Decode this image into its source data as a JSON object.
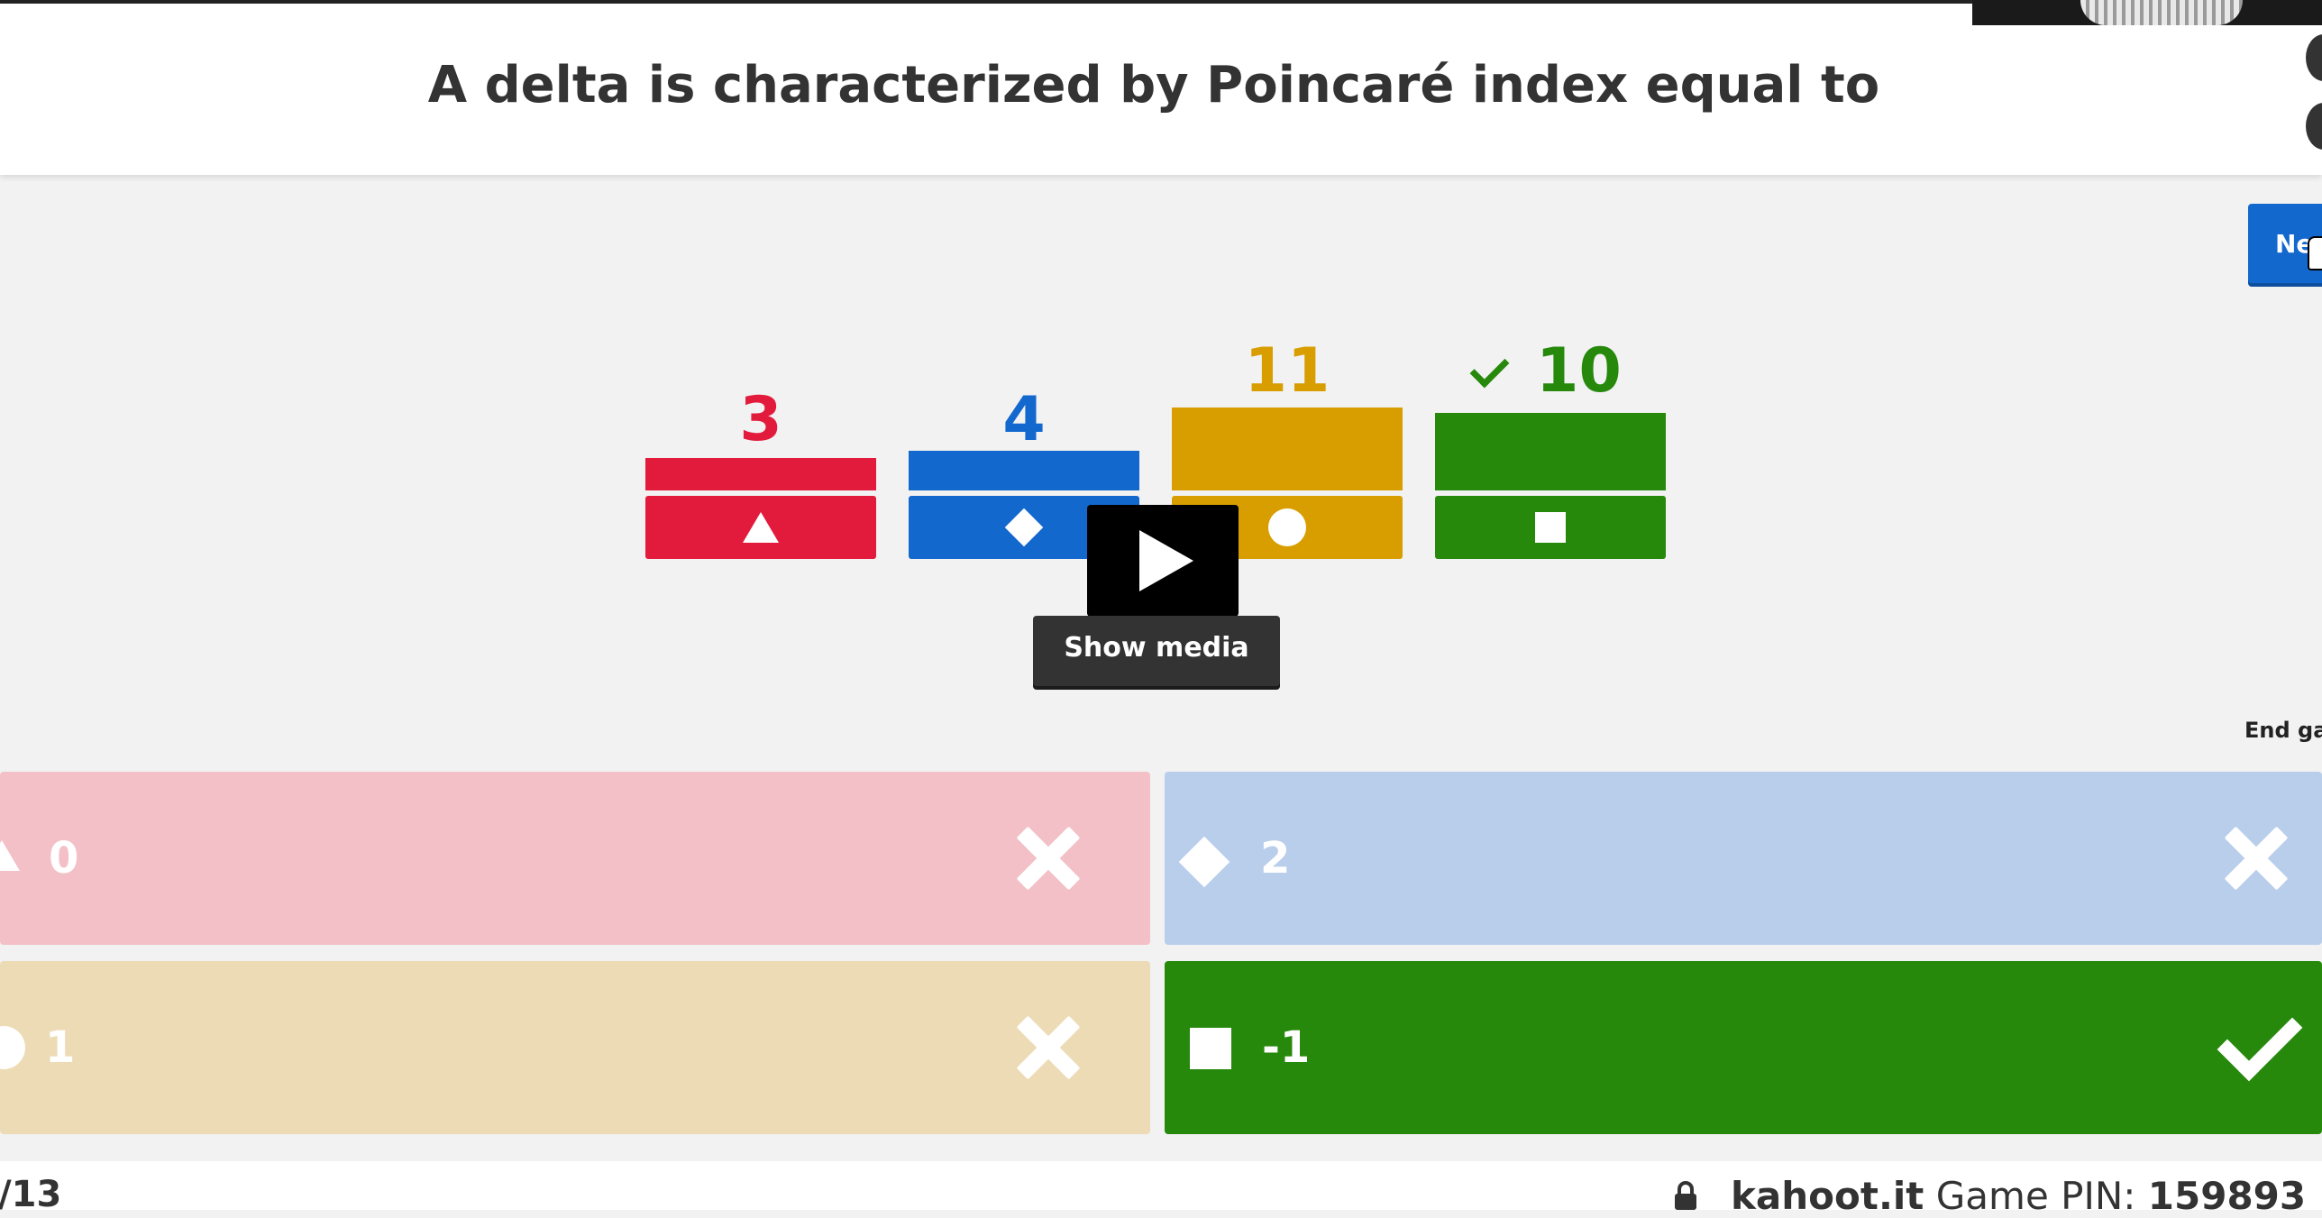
{
  "header": {
    "question": "A delta is characterized by Poincaré index equal to"
  },
  "controls": {
    "next_label": "Next",
    "end_game_label": "End game"
  },
  "media": {
    "show_media_label": "Show media"
  },
  "results": [
    {
      "count": "3",
      "shape": "triangle-icon",
      "color": "#e21b3c",
      "correct": false
    },
    {
      "count": "4",
      "shape": "diamond-icon",
      "color": "#1368ce",
      "correct": false
    },
    {
      "count": "11",
      "shape": "circle-icon",
      "color": "#d89e00",
      "correct": false
    },
    {
      "count": "10",
      "shape": "square-icon",
      "color": "#26890c",
      "correct": true
    }
  ],
  "answers": [
    {
      "text": "0",
      "shape": "triangle-icon",
      "status": "incorrect",
      "color": "#f2c0c6"
    },
    {
      "text": "2",
      "shape": "diamond-icon",
      "status": "incorrect",
      "color": "#b9ceeb"
    },
    {
      "text": "1",
      "shape": "circle-icon",
      "status": "incorrect",
      "color": "#eddbb6"
    },
    {
      "text": "-1",
      "shape": "square-icon",
      "status": "correct",
      "color": "#26890c"
    }
  ],
  "footer": {
    "question_count": "/13",
    "brand": "kahoot.it",
    "pin_label": "Game PIN:",
    "pin_value": "159893"
  }
}
